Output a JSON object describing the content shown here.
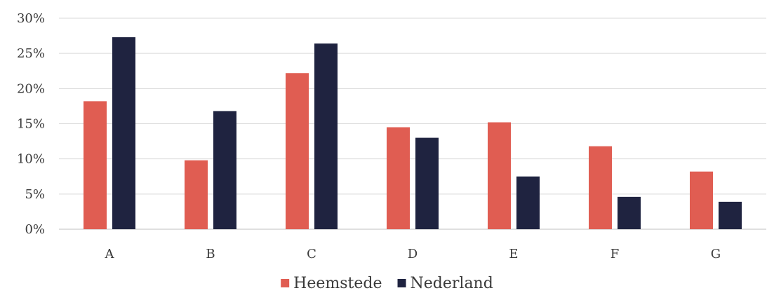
{
  "chart_data": {
    "type": "bar",
    "categories": [
      "A",
      "B",
      "C",
      "D",
      "E",
      "F",
      "G"
    ],
    "series": [
      {
        "name": "Heemstede",
        "color": "#E05D52",
        "values": [
          18.2,
          9.8,
          22.2,
          14.5,
          15.2,
          11.8,
          8.2
        ]
      },
      {
        "name": "Nederland",
        "color": "#1F2340",
        "values": [
          27.3,
          16.8,
          26.4,
          13.0,
          7.5,
          4.6,
          3.9
        ]
      }
    ],
    "ylim": [
      0,
      30
    ],
    "yticks": [
      0,
      5,
      10,
      15,
      20,
      25,
      30
    ],
    "ytick_labels": [
      "0%",
      "5%",
      "10%",
      "15%",
      "20%",
      "25%",
      "30%"
    ],
    "grid": true,
    "legend_position": "bottom-center"
  }
}
